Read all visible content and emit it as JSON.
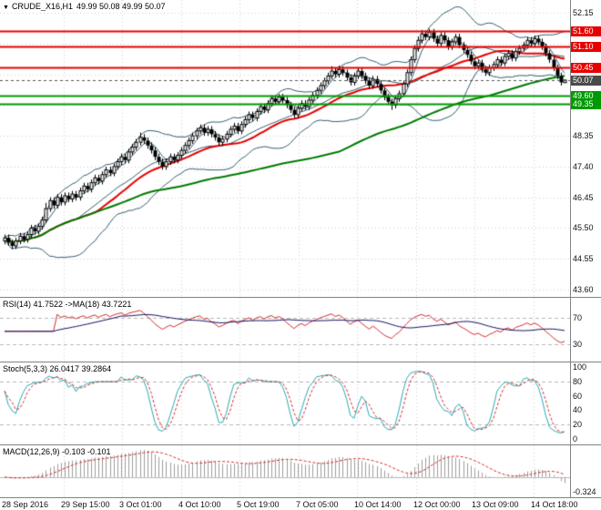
{
  "header": {
    "dropdown_icon": "▼",
    "symbol_period": "CRUDE_X16,H1",
    "ohlc": "49.99 50.08 49.99 50.07"
  },
  "colors": {
    "bollinger": "#2f5e6e",
    "ma_red": "#e60000",
    "ma_green": "#007a00",
    "level_red": "#e60000",
    "level_green": "#009900",
    "current_line": "#555555",
    "current_tag": "#4a4a4a",
    "rsi_line": "#d42a2a",
    "rsi_ma": "#101060",
    "stoch_k": "#25aab4",
    "stoch_d": "#d42a2a",
    "macd_hist": "#9c9c9c",
    "macd_signal": "#d42a2a",
    "grid": "#cfcfcf",
    "level_dash": "#b8b8b8",
    "separator": "#828282"
  },
  "price_axis": {
    "ticks": [
      "52.15",
      "48.35",
      "47.40",
      "46.45",
      "45.50",
      "44.55",
      "43.60"
    ],
    "levels": [
      {
        "price": "51.60",
        "type": "resistance"
      },
      {
        "price": "51.10",
        "type": "resistance"
      },
      {
        "price": "50.45",
        "type": "resistance"
      },
      {
        "price": "50.07",
        "type": "current"
      },
      {
        "price": "49.60",
        "type": "support"
      },
      {
        "price": "49.35",
        "type": "support"
      }
    ]
  },
  "indicators": {
    "rsi": {
      "label": "RSI(14) 41.7522 ->MA(18) 43.7221",
      "period": 14,
      "ma_period": 18,
      "levels": [
        "70",
        "30"
      ]
    },
    "stoch": {
      "label": "Stoch(5,3,3) 26.0417 39.2864",
      "k": 5,
      "d": 3,
      "slowing": 3,
      "ticks": [
        "100",
        "80",
        "60",
        "40",
        "20",
        "0"
      ],
      "levels": [
        80,
        20
      ]
    },
    "macd": {
      "label": "MACD(12,26,9) -0.103 -0.101",
      "fast": 12,
      "slow": 26,
      "signal": 9,
      "min_label": "-0.324"
    }
  },
  "chart_data": {
    "type": "candlestick",
    "symbol": "CRUDE_X16",
    "timeframe": "H1",
    "title": "CRUDE_X16,H1 49.99 50.08 49.99 50.07",
    "price_range": [
      43.6,
      52.15
    ],
    "grid_step": 0.95,
    "levels": {
      "resistance": [
        51.6,
        51.1,
        50.45
      ],
      "support": [
        49.6,
        49.35
      ],
      "current_price": 50.07
    },
    "x_labels": [
      "28 Sep 2016",
      "29 Sep 15:00",
      "3 Oct 01:00",
      "4 Oct 10:00",
      "5 Oct 19:00",
      "7 Oct 05:00",
      "10 Oct 14:00",
      "12 Oct 00:00",
      "13 Oct 09:00",
      "14 Oct 18:00"
    ],
    "sub_charts": [
      {
        "type": "line",
        "name": "RSI(14) with MA(18)",
        "current": 41.7522,
        "ma_current": 43.7221,
        "range": [
          0,
          100
        ],
        "marked_levels": [
          70,
          30
        ]
      },
      {
        "type": "line",
        "name": "Stochastic(5,3,3)",
        "current_k": 26.0417,
        "current_d": 39.2864,
        "range": [
          0,
          100
        ],
        "marked_levels": [
          80,
          20
        ]
      },
      {
        "type": "histogram",
        "name": "MACD(12,26,9)",
        "current_macd": -0.103,
        "current_signal": -0.101,
        "axis_min": -0.324
      }
    ],
    "ohlc": [
      [
        45.1,
        45.3,
        45.0,
        45.2
      ],
      [
        45.2,
        45.3,
        44.95,
        45.05
      ],
      [
        45.05,
        45.15,
        44.85,
        44.95
      ],
      [
        44.95,
        45.2,
        44.85,
        45.1
      ],
      [
        45.1,
        45.35,
        45.0,
        45.25
      ],
      [
        45.25,
        45.35,
        45.05,
        45.15
      ],
      [
        45.15,
        45.4,
        45.05,
        45.3
      ],
      [
        45.3,
        45.6,
        45.2,
        45.5
      ],
      [
        45.5,
        45.6,
        45.3,
        45.4
      ],
      [
        45.4,
        45.65,
        45.3,
        45.55
      ],
      [
        45.55,
        45.85,
        45.45,
        45.75
      ],
      [
        45.75,
        46.28,
        45.65,
        46.1
      ],
      [
        46.1,
        46.45,
        46.0,
        46.35
      ],
      [
        46.35,
        46.45,
        46.1,
        46.2
      ],
      [
        46.2,
        46.55,
        46.1,
        46.45
      ],
      [
        46.45,
        46.55,
        46.2,
        46.3
      ],
      [
        46.3,
        46.6,
        46.2,
        46.5
      ],
      [
        46.5,
        46.6,
        46.3,
        46.4
      ],
      [
        46.4,
        46.65,
        46.3,
        46.55
      ],
      [
        46.55,
        46.65,
        46.35,
        46.45
      ],
      [
        46.45,
        46.75,
        46.35,
        46.65
      ],
      [
        46.65,
        46.9,
        46.55,
        46.8
      ],
      [
        46.8,
        46.9,
        46.6,
        46.7
      ],
      [
        46.7,
        47.0,
        46.6,
        46.9
      ],
      [
        46.9,
        47.15,
        46.8,
        47.05
      ],
      [
        47.05,
        47.15,
        46.85,
        46.95
      ],
      [
        46.95,
        47.25,
        46.85,
        47.15
      ],
      [
        47.15,
        47.4,
        47.05,
        47.3
      ],
      [
        47.3,
        47.4,
        47.1,
        47.2
      ],
      [
        47.2,
        47.5,
        47.1,
        47.4
      ],
      [
        47.4,
        47.65,
        47.3,
        47.55
      ],
      [
        47.55,
        47.8,
        47.45,
        47.7
      ],
      [
        47.7,
        47.8,
        47.5,
        47.6
      ],
      [
        47.6,
        47.95,
        47.5,
        47.85
      ],
      [
        47.85,
        48.1,
        47.75,
        48.0
      ],
      [
        48.0,
        48.25,
        47.9,
        48.15
      ],
      [
        48.15,
        48.45,
        48.05,
        48.3
      ],
      [
        48.3,
        48.4,
        48.1,
        48.2
      ],
      [
        48.2,
        48.3,
        47.95,
        48.05
      ],
      [
        48.05,
        48.15,
        47.8,
        47.9
      ],
      [
        47.9,
        48.0,
        47.6,
        47.7
      ],
      [
        47.7,
        47.8,
        47.45,
        47.55
      ],
      [
        47.55,
        47.65,
        47.3,
        47.4
      ],
      [
        47.4,
        47.65,
        47.3,
        47.55
      ],
      [
        47.55,
        47.8,
        47.45,
        47.7
      ],
      [
        47.7,
        47.8,
        47.5,
        47.6
      ],
      [
        47.6,
        47.85,
        47.5,
        47.75
      ],
      [
        47.75,
        48.0,
        47.65,
        47.9
      ],
      [
        47.9,
        48.15,
        47.8,
        48.05
      ],
      [
        48.05,
        48.3,
        47.95,
        48.2
      ],
      [
        48.2,
        48.45,
        48.1,
        48.35
      ],
      [
        48.35,
        48.6,
        48.25,
        48.5
      ],
      [
        48.5,
        48.7,
        48.4,
        48.6
      ],
      [
        48.6,
        48.7,
        48.35,
        48.45
      ],
      [
        48.45,
        48.65,
        48.35,
        48.55
      ],
      [
        48.55,
        48.65,
        48.3,
        48.4
      ],
      [
        48.4,
        48.5,
        48.2,
        48.3
      ],
      [
        48.3,
        48.4,
        48.05,
        48.15
      ],
      [
        48.15,
        48.35,
        48.05,
        48.25
      ],
      [
        48.25,
        48.5,
        48.15,
        48.4
      ],
      [
        48.4,
        48.65,
        48.3,
        48.55
      ],
      [
        48.55,
        48.75,
        48.45,
        48.65
      ],
      [
        48.65,
        48.75,
        48.4,
        48.5
      ],
      [
        48.5,
        48.8,
        48.4,
        48.7
      ],
      [
        48.7,
        48.95,
        48.6,
        48.85
      ],
      [
        48.85,
        49.1,
        48.75,
        49.0
      ],
      [
        49.0,
        49.1,
        48.8,
        48.9
      ],
      [
        48.9,
        49.2,
        48.8,
        49.1
      ],
      [
        49.1,
        49.35,
        49.0,
        49.25
      ],
      [
        49.25,
        49.35,
        49.05,
        49.15
      ],
      [
        49.15,
        49.45,
        49.05,
        49.35
      ],
      [
        49.35,
        49.6,
        49.25,
        49.5
      ],
      [
        49.5,
        49.6,
        49.3,
        49.4
      ],
      [
        49.4,
        49.65,
        49.3,
        49.55
      ],
      [
        49.55,
        49.65,
        49.35,
        49.45
      ],
      [
        49.45,
        49.55,
        49.2,
        49.3
      ],
      [
        49.3,
        49.4,
        49.05,
        49.15
      ],
      [
        49.15,
        49.25,
        48.9,
        49.0
      ],
      [
        49.0,
        49.3,
        48.9,
        49.2
      ],
      [
        49.2,
        49.45,
        49.1,
        49.35
      ],
      [
        49.35,
        49.45,
        49.15,
        49.25
      ],
      [
        49.25,
        49.55,
        49.15,
        49.45
      ],
      [
        49.45,
        49.7,
        49.35,
        49.6
      ],
      [
        49.6,
        49.85,
        49.5,
        49.75
      ],
      [
        49.75,
        50.0,
        49.65,
        49.9
      ],
      [
        49.9,
        50.15,
        49.8,
        50.05
      ],
      [
        50.05,
        50.3,
        49.95,
        50.2
      ],
      [
        50.2,
        50.5,
        50.1,
        50.35
      ],
      [
        50.35,
        50.45,
        50.15,
        50.25
      ],
      [
        50.25,
        50.52,
        50.15,
        50.4
      ],
      [
        50.4,
        50.5,
        50.2,
        50.3
      ],
      [
        50.3,
        50.4,
        50.05,
        50.15
      ],
      [
        50.15,
        50.25,
        49.9,
        50.0
      ],
      [
        50.0,
        50.3,
        49.9,
        50.2
      ],
      [
        50.2,
        50.45,
        50.1,
        50.35
      ],
      [
        50.35,
        50.45,
        50.1,
        50.2
      ],
      [
        50.2,
        50.3,
        49.95,
        50.05
      ],
      [
        50.05,
        50.15,
        49.8,
        49.9
      ],
      [
        49.9,
        50.2,
        49.8,
        50.1
      ],
      [
        50.1,
        50.2,
        49.85,
        49.95
      ],
      [
        49.95,
        50.05,
        49.65,
        49.75
      ],
      [
        49.75,
        49.85,
        49.45,
        49.55
      ],
      [
        49.55,
        49.65,
        49.3,
        49.4
      ],
      [
        49.4,
        49.5,
        49.15,
        49.3
      ],
      [
        49.3,
        49.6,
        49.2,
        49.5
      ],
      [
        49.5,
        49.75,
        49.4,
        49.65
      ],
      [
        49.65,
        50.05,
        49.55,
        49.95
      ],
      [
        49.95,
        50.4,
        49.85,
        50.3
      ],
      [
        50.3,
        50.8,
        50.2,
        50.7
      ],
      [
        50.7,
        51.15,
        50.6,
        51.05
      ],
      [
        51.05,
        51.42,
        50.95,
        51.3
      ],
      [
        51.3,
        51.62,
        51.2,
        51.5
      ],
      [
        51.5,
        51.6,
        51.3,
        51.4
      ],
      [
        51.4,
        51.65,
        51.3,
        51.55
      ],
      [
        51.55,
        51.65,
        51.25,
        51.35
      ],
      [
        51.35,
        51.45,
        51.1,
        51.2
      ],
      [
        51.2,
        51.55,
        51.1,
        51.45
      ],
      [
        51.45,
        51.55,
        51.2,
        51.3
      ],
      [
        51.3,
        51.4,
        51.0,
        51.1
      ],
      [
        51.1,
        51.35,
        51.0,
        51.25
      ],
      [
        51.25,
        51.5,
        51.15,
        51.4
      ],
      [
        51.4,
        51.5,
        51.05,
        51.15
      ],
      [
        51.15,
        51.25,
        50.9,
        51.0
      ],
      [
        51.0,
        51.1,
        50.75,
        50.85
      ],
      [
        50.85,
        50.95,
        50.55,
        50.65
      ],
      [
        50.65,
        50.75,
        50.4,
        50.5
      ],
      [
        50.5,
        50.7,
        50.4,
        50.6
      ],
      [
        50.6,
        50.7,
        50.3,
        50.4
      ],
      [
        50.4,
        50.5,
        50.2,
        50.3
      ],
      [
        50.3,
        50.55,
        50.2,
        50.45
      ],
      [
        50.45,
        50.65,
        50.35,
        50.55
      ],
      [
        50.55,
        50.8,
        50.45,
        50.7
      ],
      [
        50.7,
        50.8,
        50.5,
        50.6
      ],
      [
        50.6,
        50.9,
        50.5,
        50.8
      ],
      [
        50.8,
        51.0,
        50.7,
        50.9
      ],
      [
        50.9,
        51.0,
        50.65,
        50.75
      ],
      [
        50.75,
        51.05,
        50.65,
        50.95
      ],
      [
        50.95,
        51.15,
        50.85,
        51.05
      ],
      [
        51.05,
        51.25,
        50.95,
        51.15
      ],
      [
        51.15,
        51.4,
        51.05,
        51.3
      ],
      [
        51.3,
        51.4,
        51.1,
        51.2
      ],
      [
        51.2,
        51.45,
        51.1,
        51.35
      ],
      [
        51.35,
        51.45,
        51.15,
        51.25
      ],
      [
        51.25,
        51.35,
        51.0,
        51.1
      ],
      [
        51.1,
        51.2,
        50.8,
        50.9
      ],
      [
        50.9,
        51.0,
        50.6,
        50.7
      ],
      [
        50.7,
        50.8,
        50.35,
        50.45
      ],
      [
        50.45,
        50.55,
        50.1,
        50.2
      ],
      [
        50.2,
        50.3,
        49.9,
        50.0
      ],
      [
        49.99,
        50.08,
        49.99,
        50.07
      ]
    ]
  }
}
